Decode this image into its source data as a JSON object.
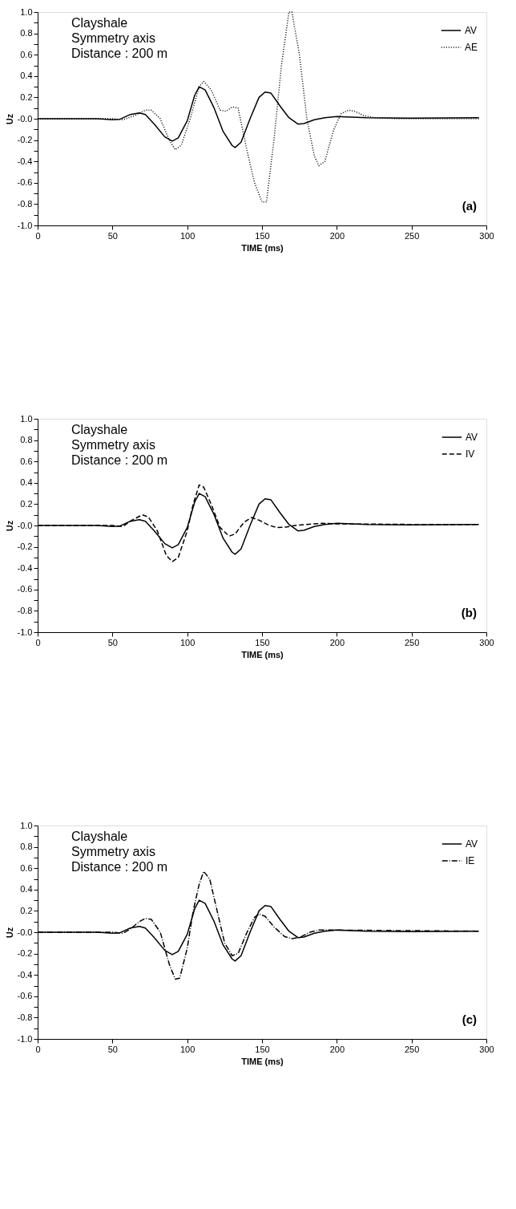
{
  "chart_data": [
    {
      "type": "line",
      "xlabel": "TIME (ms)",
      "ylabel": "Uz",
      "annotations": [
        "Clayshale",
        "Symmetry axis",
        "Distance : 200 m",
        "(a)"
      ],
      "xlim": [
        0,
        300
      ],
      "xticks": [
        0,
        50,
        100,
        150,
        200,
        250,
        300
      ],
      "ylim": [
        -1,
        1
      ],
      "yticks": [
        {
          "value": 1,
          "label": "1.0"
        },
        {
          "value": 0.9,
          "label": null
        },
        {
          "value": 0.8,
          "label": "0.8"
        },
        {
          "value": 0.7,
          "label": null
        },
        {
          "value": 0.6,
          "label": "0.6"
        },
        {
          "value": 0.5,
          "label": null
        },
        {
          "value": 0.4,
          "label": "0.4"
        },
        {
          "value": 0.3,
          "label": null
        },
        {
          "value": 0.2,
          "label": "0.2"
        },
        {
          "value": 0.1,
          "label": null
        },
        {
          "value": 0,
          "label": "-0.0"
        },
        {
          "value": -0.1,
          "label": null
        },
        {
          "value": -0.2,
          "label": "-0.2"
        },
        {
          "value": -0.3,
          "label": null
        },
        {
          "value": -0.4,
          "label": "-0.4"
        },
        {
          "value": -0.5,
          "label": null
        },
        {
          "value": -0.6,
          "label": "-0.6"
        },
        {
          "value": -0.7,
          "label": null
        },
        {
          "value": -0.8,
          "label": "-0.8"
        },
        {
          "value": -0.9,
          "label": null
        },
        {
          "value": -1,
          "label": "-1.0"
        }
      ],
      "grid": false,
      "legend": "top right",
      "series": [
        {
          "name": "AV",
          "color": "#000000",
          "line_style": "solid",
          "x": [
            0,
            40,
            50,
            55,
            62,
            68,
            72,
            78,
            85,
            90,
            94,
            100,
            105,
            108,
            112,
            118,
            124,
            130,
            132,
            136,
            142,
            148,
            152,
            156,
            162,
            168,
            174,
            178,
            185,
            192,
            200,
            220,
            250,
            295
          ],
          "values": [
            0,
            0,
            -0.01,
            -0.005,
            0.04,
            0.055,
            0.04,
            -0.05,
            -0.17,
            -0.21,
            -0.18,
            -0.02,
            0.22,
            0.3,
            0.27,
            0.1,
            -0.12,
            -0.25,
            -0.27,
            -0.22,
            0,
            0.2,
            0.25,
            0.24,
            0.12,
            0.01,
            -0.05,
            -0.045,
            -0.01,
            0.01,
            0.02,
            0.01,
            0.005,
            0.01
          ]
        },
        {
          "name": "AE",
          "color": "#000000",
          "line_style": "dotted",
          "x": [
            0,
            50,
            57,
            65,
            72,
            76,
            82,
            88,
            92,
            96,
            102,
            108,
            111,
            116,
            122,
            126,
            130,
            134,
            140,
            145,
            150,
            153,
            158,
            163,
            168,
            170,
            175,
            180,
            185,
            188,
            192,
            198,
            203,
            208,
            212,
            218,
            225,
            240,
            295
          ],
          "values": [
            0,
            0,
            -0.01,
            0.03,
            0.08,
            0.08,
            0,
            -0.2,
            -0.29,
            -0.25,
            0,
            0.3,
            0.35,
            0.27,
            0.08,
            0.07,
            0.11,
            0.1,
            -0.3,
            -0.6,
            -0.78,
            -0.78,
            -0.2,
            0.5,
            1.0,
            1.0,
            0.6,
            0,
            -0.35,
            -0.44,
            -0.4,
            -0.1,
            0.05,
            0.08,
            0.07,
            0.03,
            0.01,
            0.0,
            0.0
          ]
        }
      ]
    },
    {
      "type": "line",
      "xlabel": "TIME (ms)",
      "ylabel": "Uz",
      "annotations": [
        "Clayshale",
        "Symmetry axis",
        "Distance : 200 m",
        "(b)"
      ],
      "xlim": [
        0,
        300
      ],
      "xticks": [
        0,
        50,
        100,
        150,
        200,
        250,
        300
      ],
      "ylim": [
        -1,
        1
      ],
      "yticks": [
        {
          "value": 1,
          "label": "1.0"
        },
        {
          "value": 0.9,
          "label": null
        },
        {
          "value": 0.8,
          "label": "0.8"
        },
        {
          "value": 0.7,
          "label": null
        },
        {
          "value": 0.6,
          "label": "0.6"
        },
        {
          "value": 0.5,
          "label": null
        },
        {
          "value": 0.4,
          "label": "0.4"
        },
        {
          "value": 0.3,
          "label": null
        },
        {
          "value": 0.2,
          "label": "0.2"
        },
        {
          "value": 0.1,
          "label": null
        },
        {
          "value": 0,
          "label": "-0.0"
        },
        {
          "value": -0.1,
          "label": null
        },
        {
          "value": -0.2,
          "label": "-0.2"
        },
        {
          "value": -0.3,
          "label": null
        },
        {
          "value": -0.4,
          "label": "-0.4"
        },
        {
          "value": -0.5,
          "label": null
        },
        {
          "value": -0.6,
          "label": "-0.6"
        },
        {
          "value": -0.7,
          "label": null
        },
        {
          "value": -0.8,
          "label": "-0.8"
        },
        {
          "value": -0.9,
          "label": null
        },
        {
          "value": -1,
          "label": "-1.0"
        }
      ],
      "grid": false,
      "legend": "top right",
      "series": [
        {
          "name": "AV",
          "color": "#000000",
          "line_style": "solid",
          "x": [
            0,
            40,
            50,
            55,
            62,
            68,
            72,
            78,
            85,
            90,
            94,
            100,
            105,
            108,
            112,
            118,
            124,
            130,
            132,
            136,
            142,
            148,
            152,
            156,
            162,
            168,
            174,
            178,
            185,
            192,
            200,
            220,
            250,
            295
          ],
          "values": [
            0,
            0,
            -0.01,
            -0.005,
            0.04,
            0.055,
            0.04,
            -0.05,
            -0.17,
            -0.21,
            -0.18,
            -0.02,
            0.22,
            0.3,
            0.27,
            0.1,
            -0.12,
            -0.25,
            -0.27,
            -0.22,
            0,
            0.2,
            0.25,
            0.24,
            0.12,
            0.01,
            -0.05,
            -0.045,
            -0.01,
            0.01,
            0.02,
            0.01,
            0.005,
            0.01
          ]
        },
        {
          "name": "IV",
          "color": "#000000",
          "line_style": "dashed",
          "x": [
            0,
            50,
            57,
            63,
            70,
            74,
            80,
            86,
            90,
            94,
            100,
            104,
            108,
            111,
            116,
            122,
            128,
            132,
            138,
            143,
            148,
            155,
            160,
            166,
            172,
            180,
            190,
            200,
            250,
            295
          ],
          "values": [
            0,
            0,
            -0.01,
            0.05,
            0.1,
            0.08,
            -0.05,
            -0.28,
            -0.34,
            -0.3,
            -0.05,
            0.2,
            0.38,
            0.36,
            0.2,
            -0.02,
            -0.1,
            -0.08,
            0.03,
            0.075,
            0.05,
            0,
            -0.02,
            -0.015,
            0,
            0.01,
            0.02,
            0.015,
            0.01,
            0.01
          ]
        }
      ]
    },
    {
      "type": "line",
      "xlabel": "TIME (ms)",
      "ylabel": "Uz",
      "annotations": [
        "Clayshale",
        "Symmetry axis",
        "Distance : 200 m",
        "(c)"
      ],
      "xlim": [
        0,
        300
      ],
      "xticks": [
        0,
        50,
        100,
        150,
        200,
        250,
        300
      ],
      "ylim": [
        -1,
        1
      ],
      "yticks": [
        {
          "value": 1,
          "label": "1.0"
        },
        {
          "value": 0.9,
          "label": null
        },
        {
          "value": 0.8,
          "label": "0.8"
        },
        {
          "value": 0.7,
          "label": null
        },
        {
          "value": 0.6,
          "label": "0.6"
        },
        {
          "value": 0.5,
          "label": null
        },
        {
          "value": 0.4,
          "label": "0.4"
        },
        {
          "value": 0.3,
          "label": null
        },
        {
          "value": 0.2,
          "label": "0.2"
        },
        {
          "value": 0.1,
          "label": null
        },
        {
          "value": 0,
          "label": "-0.0"
        },
        {
          "value": -0.1,
          "label": null
        },
        {
          "value": -0.2,
          "label": "-0.2"
        },
        {
          "value": -0.3,
          "label": null
        },
        {
          "value": -0.4,
          "label": "-0.4"
        },
        {
          "value": -0.5,
          "label": null
        },
        {
          "value": -0.6,
          "label": "-0.6"
        },
        {
          "value": -0.7,
          "label": null
        },
        {
          "value": -0.8,
          "label": "-0.8"
        },
        {
          "value": -0.9,
          "label": null
        },
        {
          "value": -1,
          "label": "-1.0"
        }
      ],
      "grid": false,
      "legend": "top right",
      "series": [
        {
          "name": "AV",
          "color": "#000000",
          "line_style": "solid",
          "x": [
            0,
            40,
            50,
            55,
            62,
            68,
            72,
            78,
            85,
            90,
            94,
            100,
            105,
            108,
            112,
            118,
            124,
            130,
            132,
            136,
            142,
            148,
            152,
            156,
            162,
            168,
            174,
            178,
            185,
            192,
            200,
            220,
            250,
            295
          ],
          "values": [
            0,
            0,
            -0.01,
            -0.005,
            0.04,
            0.055,
            0.04,
            -0.05,
            -0.17,
            -0.21,
            -0.18,
            -0.02,
            0.22,
            0.3,
            0.27,
            0.1,
            -0.12,
            -0.25,
            -0.27,
            -0.22,
            0,
            0.2,
            0.25,
            0.24,
            0.12,
            0.01,
            -0.05,
            -0.045,
            -0.01,
            0.01,
            0.02,
            0.01,
            0.005,
            0.01
          ]
        },
        {
          "name": "IE",
          "color": "#000000",
          "line_style": "dashdot",
          "x": [
            0,
            50,
            57,
            62,
            68,
            72,
            76,
            82,
            88,
            92,
            95,
            100,
            104,
            108,
            111,
            115,
            120,
            125,
            130,
            134,
            140,
            145,
            148,
            152,
            158,
            165,
            170,
            175,
            182,
            188,
            200,
            295
          ],
          "values": [
            0,
            0,
            -0.01,
            0.03,
            0.1,
            0.13,
            0.12,
            0,
            -0.3,
            -0.44,
            -0.43,
            -0.15,
            0.2,
            0.45,
            0.57,
            0.5,
            0.2,
            -0.1,
            -0.22,
            -0.2,
            0,
            0.14,
            0.17,
            0.15,
            0.05,
            -0.04,
            -0.06,
            -0.05,
            0,
            0.02,
            0.02,
            0.01
          ]
        }
      ]
    }
  ]
}
